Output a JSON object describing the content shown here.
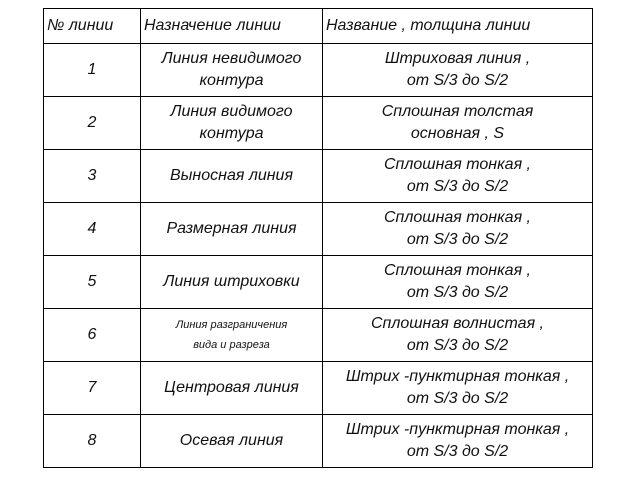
{
  "headers": [
    "№ линии",
    "Назначение линии",
    "Название , толщина линии"
  ],
  "rows": [
    {
      "num": "1",
      "purpose": "Линия невидимого\nконтура",
      "name": "Штриховая линия ,\nот S/3 до S/2"
    },
    {
      "num": "2",
      "purpose": "Линия видимого\nконтура",
      "name": "Сплошная толстая\nосновная ,  S"
    },
    {
      "num": "3",
      "purpose": "Выносная линия",
      "name": "Сплошная тонкая ,\nот S/3 до S/2"
    },
    {
      "num": "4",
      "purpose": "Размерная линия",
      "name": "Сплошная тонкая ,\nот S/3 до S/2"
    },
    {
      "num": "5",
      "purpose": "Линия штриховки",
      "name": "Сплошная тонкая ,\nот S/3 до S/2"
    },
    {
      "num": "6",
      "purpose": "Линия разграничения\nвида и разреза",
      "name": "Сплошная волнистая  ,\nот S/3 до S/2"
    },
    {
      "num": "7",
      "purpose": "Центровая линия",
      "name": "Штрих -пунктирная тонкая  ,\nот S/3 до S/2"
    },
    {
      "num": "8",
      "purpose": "Осевая линия",
      "name": "Штрих -пунктирная тонкая  ,\nот S/3 до S/2"
    }
  ]
}
